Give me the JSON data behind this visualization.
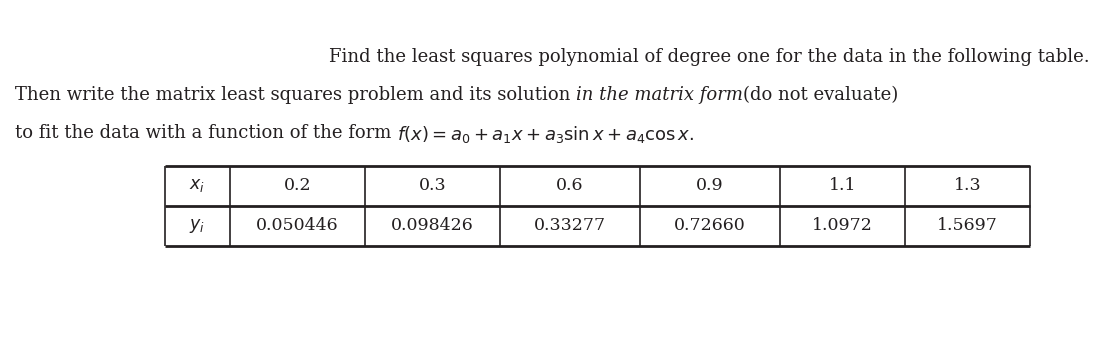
{
  "line1": "Find the least squares polynomial of degree one for the data in the following table.",
  "line2_part1": "Then write the matrix least squares problem and its solution ",
  "line2_part2": "in the matrix form",
  "line2_part3": "(do not evaluate)",
  "line3_part1": "to fit the data with a function of the form ",
  "table_headers": [
    "$x_i$",
    "0.2",
    "0.3",
    "0.6",
    "0.9",
    "1.1",
    "1.3"
  ],
  "table_row2": [
    "$y_i$",
    "0.050446",
    "0.098426",
    "0.33277",
    "0.72660",
    "1.0972",
    "1.5697"
  ],
  "bg_color": "#ffffff",
  "text_color": "#231f20",
  "font_size_text": 13.0,
  "font_size_table": 12.5
}
